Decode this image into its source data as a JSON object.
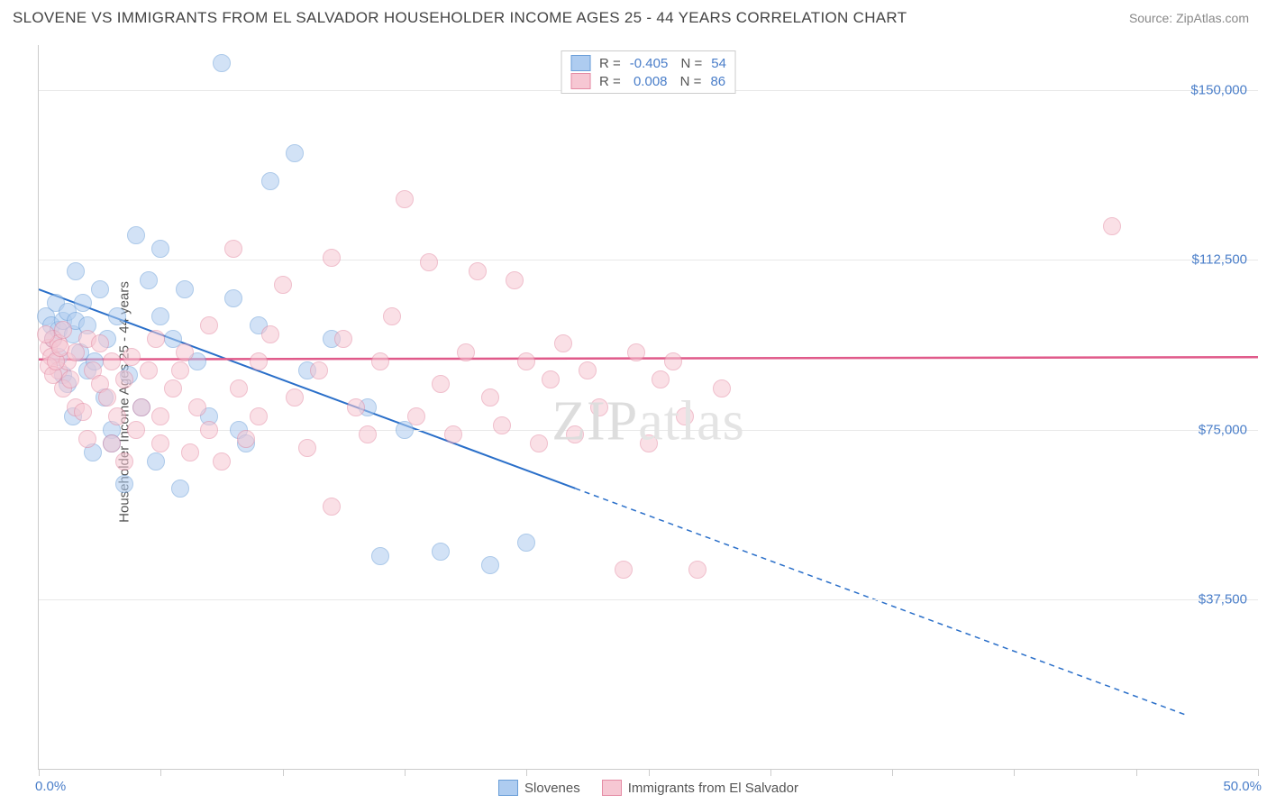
{
  "header": {
    "title": "SLOVENE VS IMMIGRANTS FROM EL SALVADOR HOUSEHOLDER INCOME AGES 25 - 44 YEARS CORRELATION CHART",
    "source": "Source: ZipAtlas.com"
  },
  "chart": {
    "type": "scatter",
    "ylabel": "Householder Income Ages 25 - 44 years",
    "xlim": [
      0,
      50
    ],
    "ylim": [
      0,
      160000
    ],
    "yticks": [
      {
        "v": 37500,
        "label": "$37,500"
      },
      {
        "v": 75000,
        "label": "$75,000"
      },
      {
        "v": 112500,
        "label": "$112,500"
      },
      {
        "v": 150000,
        "label": "$150,000"
      }
    ],
    "xtick_positions": [
      0,
      5,
      10,
      15,
      20,
      25,
      30,
      35,
      40,
      45,
      50
    ],
    "xtick_labels": {
      "min": "0.0%",
      "max": "50.0%"
    },
    "grid_color": "#e8e8e8",
    "background_color": "#ffffff",
    "axis_color": "#cccccc",
    "marker_radius": 10,
    "series": [
      {
        "name": "Slovenes",
        "fill": "#aeccf0",
        "stroke": "#6a9ed8",
        "fill_opacity": 0.55,
        "R": "-0.405",
        "N": "54",
        "trend": {
          "x1": 0,
          "y1": 106000,
          "x2": 22,
          "y2": 62000,
          "x2_ext": 47,
          "y2_ext": 12000,
          "color": "#2a6fc9",
          "width": 2
        },
        "points": [
          [
            0.3,
            100000
          ],
          [
            0.5,
            98000
          ],
          [
            0.6,
            95000
          ],
          [
            0.7,
            103000
          ],
          [
            0.8,
            97000
          ],
          [
            0.8,
            91000
          ],
          [
            1.0,
            99000
          ],
          [
            1.0,
            87000
          ],
          [
            1.2,
            101000
          ],
          [
            1.2,
            85000
          ],
          [
            1.4,
            96000
          ],
          [
            1.4,
            78000
          ],
          [
            1.5,
            99000
          ],
          [
            1.5,
            110000
          ],
          [
            1.7,
            92000
          ],
          [
            1.8,
            103000
          ],
          [
            2.0,
            88000
          ],
          [
            2.0,
            98000
          ],
          [
            2.2,
            70000
          ],
          [
            2.3,
            90000
          ],
          [
            2.5,
            106000
          ],
          [
            2.7,
            82000
          ],
          [
            2.8,
            95000
          ],
          [
            3.0,
            75000
          ],
          [
            3.0,
            72000
          ],
          [
            3.2,
            100000
          ],
          [
            3.5,
            63000
          ],
          [
            3.7,
            87000
          ],
          [
            4.0,
            118000
          ],
          [
            4.2,
            80000
          ],
          [
            4.5,
            108000
          ],
          [
            4.8,
            68000
          ],
          [
            5.0,
            100000
          ],
          [
            5.0,
            115000
          ],
          [
            5.5,
            95000
          ],
          [
            5.8,
            62000
          ],
          [
            6.0,
            106000
          ],
          [
            6.5,
            90000
          ],
          [
            7.0,
            78000
          ],
          [
            7.5,
            156000
          ],
          [
            8.0,
            104000
          ],
          [
            8.2,
            75000
          ],
          [
            8.5,
            72000
          ],
          [
            9.0,
            98000
          ],
          [
            9.5,
            130000
          ],
          [
            10.5,
            136000
          ],
          [
            11.0,
            88000
          ],
          [
            12.0,
            95000
          ],
          [
            13.5,
            80000
          ],
          [
            14.0,
            47000
          ],
          [
            15.0,
            75000
          ],
          [
            16.5,
            48000
          ],
          [
            18.5,
            45000
          ],
          [
            20.0,
            50000
          ]
        ]
      },
      {
        "name": "Immigrants from El Salvador",
        "fill": "#f6c7d3",
        "stroke": "#e48ba4",
        "fill_opacity": 0.55,
        "R": "0.008",
        "N": "86",
        "trend": {
          "x1": 0,
          "y1": 90500,
          "x2": 50,
          "y2": 91000,
          "color": "#e05a8a",
          "width": 2.5
        },
        "points": [
          [
            0.4,
            93000
          ],
          [
            0.5,
            91000
          ],
          [
            0.6,
            95000
          ],
          [
            0.8,
            94000
          ],
          [
            0.8,
            88000
          ],
          [
            1.0,
            97000
          ],
          [
            1.0,
            84000
          ],
          [
            1.2,
            90000
          ],
          [
            1.3,
            86000
          ],
          [
            1.5,
            92000
          ],
          [
            1.5,
            80000
          ],
          [
            1.8,
            79000
          ],
          [
            2.0,
            95000
          ],
          [
            2.0,
            73000
          ],
          [
            2.2,
            88000
          ],
          [
            2.5,
            85000
          ],
          [
            2.5,
            94000
          ],
          [
            2.8,
            82000
          ],
          [
            3.0,
            90000
          ],
          [
            3.0,
            72000
          ],
          [
            3.2,
            78000
          ],
          [
            3.5,
            86000
          ],
          [
            3.5,
            68000
          ],
          [
            3.8,
            91000
          ],
          [
            4.0,
            75000
          ],
          [
            4.2,
            80000
          ],
          [
            4.5,
            88000
          ],
          [
            4.8,
            95000
          ],
          [
            5.0,
            72000
          ],
          [
            5.0,
            78000
          ],
          [
            5.5,
            84000
          ],
          [
            5.8,
            88000
          ],
          [
            6.0,
            92000
          ],
          [
            6.2,
            70000
          ],
          [
            6.5,
            80000
          ],
          [
            7.0,
            98000
          ],
          [
            7.0,
            75000
          ],
          [
            7.5,
            68000
          ],
          [
            8.0,
            115000
          ],
          [
            8.2,
            84000
          ],
          [
            8.5,
            73000
          ],
          [
            9.0,
            90000
          ],
          [
            9.0,
            78000
          ],
          [
            9.5,
            96000
          ],
          [
            10.0,
            107000
          ],
          [
            10.5,
            82000
          ],
          [
            11.0,
            71000
          ],
          [
            11.5,
            88000
          ],
          [
            12.0,
            113000
          ],
          [
            12.0,
            58000
          ],
          [
            12.5,
            95000
          ],
          [
            13.0,
            80000
          ],
          [
            13.5,
            74000
          ],
          [
            14.0,
            90000
          ],
          [
            14.5,
            100000
          ],
          [
            15.0,
            126000
          ],
          [
            15.5,
            78000
          ],
          [
            16.0,
            112000
          ],
          [
            16.5,
            85000
          ],
          [
            17.0,
            74000
          ],
          [
            17.5,
            92000
          ],
          [
            18.0,
            110000
          ],
          [
            18.5,
            82000
          ],
          [
            19.0,
            76000
          ],
          [
            19.5,
            108000
          ],
          [
            20.0,
            90000
          ],
          [
            20.5,
            72000
          ],
          [
            21.0,
            86000
          ],
          [
            21.5,
            94000
          ],
          [
            22.0,
            74000
          ],
          [
            22.5,
            88000
          ],
          [
            23.0,
            80000
          ],
          [
            24.0,
            44000
          ],
          [
            24.5,
            92000
          ],
          [
            25.0,
            72000
          ],
          [
            25.5,
            86000
          ],
          [
            26.0,
            90000
          ],
          [
            26.5,
            78000
          ],
          [
            27.0,
            44000
          ],
          [
            28.0,
            84000
          ],
          [
            44.0,
            120000
          ],
          [
            0.3,
            96000
          ],
          [
            0.4,
            89000
          ],
          [
            0.6,
            87000
          ],
          [
            0.7,
            90000
          ],
          [
            0.9,
            93000
          ]
        ]
      }
    ],
    "legend_bottom": [
      {
        "swatch_fill": "#aeccf0",
        "swatch_stroke": "#6a9ed8",
        "label": "Slovenes"
      },
      {
        "swatch_fill": "#f6c7d3",
        "swatch_stroke": "#e48ba4",
        "label": "Immigrants from El Salvador"
      }
    ]
  },
  "watermark": {
    "bold": "ZIP",
    "thin": "atlas"
  }
}
